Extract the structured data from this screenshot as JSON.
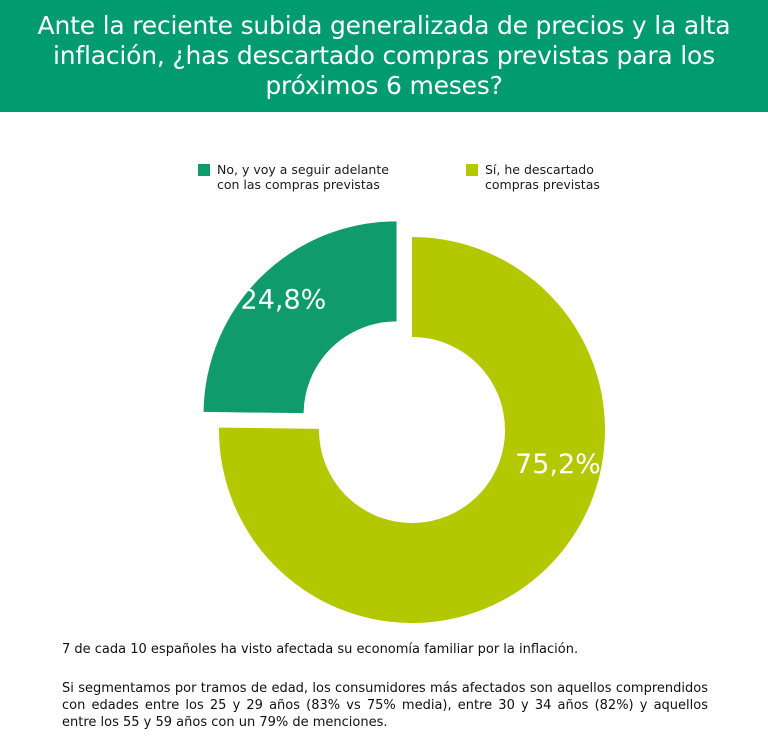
{
  "title": "Ante la reciente subida generalizada de precios y la alta inflación, ¿has descartado compras previstas para los próximos 6 meses?",
  "chart_data": {
    "type": "pie",
    "variant": "donut",
    "title": "Ante la reciente subida generalizada de precios y la alta inflación, ¿has descartado compras previstas para los próximos 6 meses?",
    "categories": [
      "No, y voy a seguir adelante con las compras previstas",
      "Sí, he descartado compras previstas"
    ],
    "values": [
      24.8,
      75.2
    ],
    "data_labels": [
      "24,8%",
      "75,2%"
    ],
    "colors": [
      "#0f9b6c",
      "#b3c800"
    ],
    "legend_position": "top"
  },
  "legend": [
    {
      "label": "No, y voy a seguir adelante con las compras previstas",
      "color": "#0f9b6c"
    },
    {
      "label": "Sí, he descartado compras previstas",
      "color": "#b3c800"
    }
  ],
  "footer": {
    "paragraph1": "7 de cada 10 españoles ha visto afectada su economía familiar por la inflación.",
    "paragraph2": "Si segmentamos por tramos de edad, los consumidores más afectados son aquellos comprendidos con edades entre los 25 y 29 años (83% vs 75% media), entre 30 y 34 años (82%) y aquellos entre los 55 y 59 años con un 79% de menciones."
  }
}
